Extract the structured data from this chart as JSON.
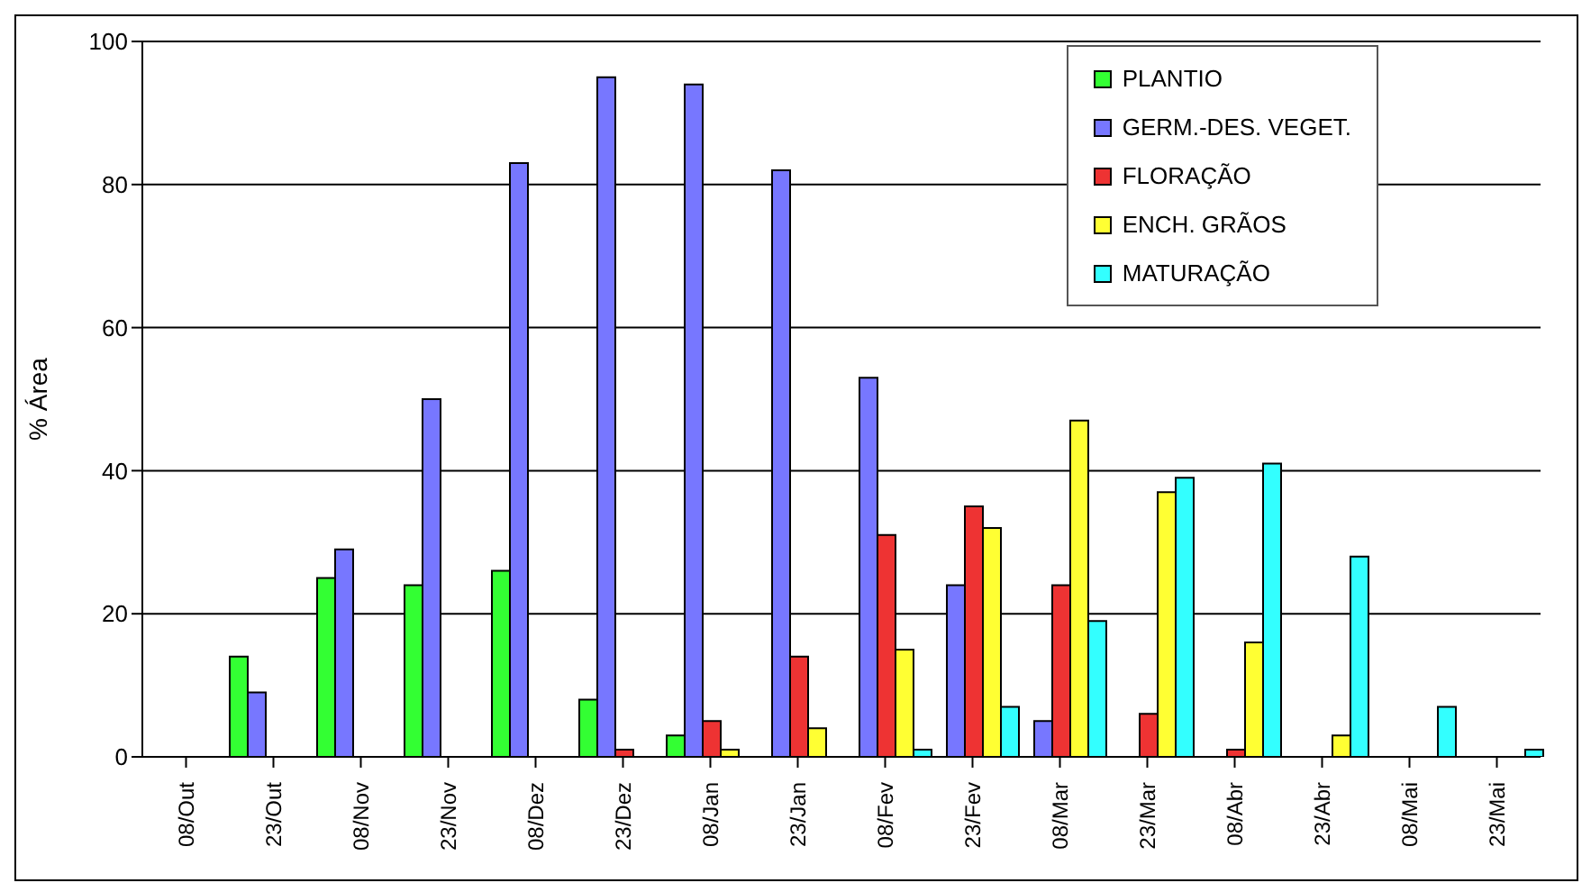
{
  "chart_data": {
    "type": "bar",
    "ylabel": "% Área",
    "categories": [
      "08/Out",
      "23/Out",
      "08/Nov",
      "23/Nov",
      "08/Dez",
      "23/Dez",
      "08/Jan",
      "23/Jan",
      "08/Fev",
      "23/Fev",
      "08/Mar",
      "23/Mar",
      "08/Abr",
      "23/Abr",
      "08/Mai",
      "23/Mai"
    ],
    "series": [
      {
        "name": "PLANTIO",
        "color": "#33ff33",
        "values": [
          0,
          14,
          25,
          24,
          26,
          8,
          3,
          0,
          0,
          0,
          0,
          0,
          0,
          0,
          0,
          0
        ]
      },
      {
        "name": "GERM.-DES. VEGET.",
        "color": "#7777ff",
        "values": [
          0,
          9,
          29,
          50,
          83,
          95,
          94,
          82,
          53,
          24,
          5,
          0,
          0,
          0,
          0,
          0
        ]
      },
      {
        "name": "FLORAÇÃO",
        "color": "#ee3333",
        "values": [
          0,
          0,
          0,
          0,
          0,
          1,
          5,
          14,
          31,
          35,
          24,
          6,
          1,
          0,
          0,
          0
        ]
      },
      {
        "name": "ENCH. GRÃOS",
        "color": "#ffff33",
        "values": [
          0,
          0,
          0,
          0,
          0,
          0,
          1,
          4,
          15,
          32,
          47,
          37,
          16,
          3,
          0,
          0
        ]
      },
      {
        "name": "MATURAÇÃO",
        "color": "#33ffff",
        "values": [
          0,
          0,
          0,
          0,
          0,
          0,
          0,
          0,
          1,
          7,
          19,
          39,
          41,
          28,
          7,
          1
        ]
      }
    ],
    "ylim": [
      0,
      100
    ],
    "yticks": [
      0,
      20,
      40,
      60,
      80,
      100
    ],
    "grid": "y",
    "legend": "top right"
  }
}
